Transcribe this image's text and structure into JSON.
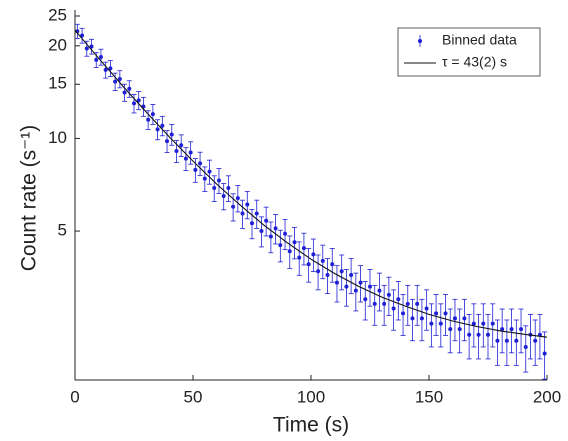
{
  "chart_data": {
    "type": "scatter",
    "x_label": "Time (s)",
    "y_label": "Count rate (s⁻¹)",
    "log_y": true,
    "legend_position": "upper right",
    "xlim": [
      0,
      200
    ],
    "xticks": [
      0,
      50,
      100,
      150,
      200
    ],
    "ylim": [
      1.64,
      25
    ],
    "yticks": [
      5,
      10,
      15,
      20,
      25
    ],
    "series": [
      {
        "name": "Binned data",
        "type": "errorbar",
        "color": "#1f1fd6",
        "x": [
          1,
          3,
          5,
          7,
          9,
          11,
          13,
          15,
          17,
          19,
          21,
          23,
          25,
          27,
          29,
          31,
          33,
          35,
          37,
          39,
          41,
          43,
          45,
          47,
          49,
          51,
          53,
          55,
          57,
          59,
          61,
          63,
          65,
          67,
          69,
          71,
          73,
          75,
          77,
          79,
          81,
          83,
          85,
          87,
          89,
          91,
          93,
          95,
          97,
          99,
          101,
          103,
          105,
          107,
          109,
          111,
          113,
          115,
          117,
          119,
          121,
          123,
          125,
          127,
          129,
          131,
          133,
          135,
          137,
          139,
          141,
          143,
          145,
          147,
          149,
          151,
          153,
          155,
          157,
          159,
          161,
          163,
          165,
          167,
          169,
          171,
          173,
          175,
          177,
          179,
          181,
          183,
          185,
          187,
          189,
          191,
          193,
          195,
          197,
          199
        ],
        "values": [
          22.3,
          21.6,
          19.6,
          19.9,
          18.0,
          18.4,
          16.7,
          16.9,
          15.3,
          15.6,
          14.1,
          14.5,
          13.0,
          13.3,
          12.7,
          11.5,
          12.0,
          10.7,
          11.0,
          9.8,
          10.3,
          9.1,
          9.5,
          8.6,
          9.0,
          7.9,
          8.3,
          7.4,
          7.8,
          6.9,
          7.3,
          6.5,
          6.9,
          6.0,
          6.4,
          5.7,
          6.1,
          5.3,
          5.7,
          5.0,
          5.4,
          4.8,
          5.1,
          4.5,
          4.9,
          4.3,
          4.6,
          4.1,
          4.4,
          3.9,
          4.2,
          3.7,
          4.0,
          3.6,
          3.9,
          3.4,
          3.7,
          3.3,
          3.6,
          3.2,
          3.4,
          3.0,
          3.3,
          2.9,
          3.2,
          2.9,
          3.1,
          2.8,
          3.0,
          2.7,
          2.9,
          2.6,
          2.9,
          2.6,
          2.8,
          2.5,
          2.7,
          2.5,
          2.7,
          2.4,
          2.6,
          2.4,
          2.6,
          2.3,
          2.5,
          2.3,
          2.5,
          2.3,
          2.5,
          2.2,
          2.4,
          2.2,
          2.4,
          2.2,
          2.4,
          2.1,
          2.3,
          2.2,
          2.3,
          2.0
        ],
        "errors": [
          1.2,
          1.2,
          1.1,
          1.1,
          1.0,
          1.1,
          1.0,
          1.0,
          1.0,
          1.0,
          0.9,
          0.9,
          0.9,
          0.9,
          0.9,
          0.8,
          0.9,
          0.8,
          0.8,
          0.8,
          0.8,
          0.75,
          0.77,
          0.73,
          0.75,
          0.7,
          0.72,
          0.68,
          0.7,
          0.66,
          0.68,
          0.64,
          0.66,
          0.61,
          0.63,
          0.6,
          0.62,
          0.58,
          0.6,
          0.56,
          0.58,
          0.55,
          0.56,
          0.53,
          0.55,
          0.52,
          0.54,
          0.51,
          0.52,
          0.49,
          0.51,
          0.48,
          0.5,
          0.47,
          0.49,
          0.46,
          0.48,
          0.45,
          0.47,
          0.45,
          0.46,
          0.43,
          0.45,
          0.43,
          0.45,
          0.43,
          0.44,
          0.42,
          0.43,
          0.41,
          0.43,
          0.4,
          0.43,
          0.4,
          0.42,
          0.4,
          0.41,
          0.4,
          0.41,
          0.39,
          0.4,
          0.39,
          0.4,
          0.38,
          0.4,
          0.38,
          0.4,
          0.38,
          0.4,
          0.37,
          0.39,
          0.37,
          0.39,
          0.37,
          0.39,
          0.36,
          0.38,
          0.37,
          0.38,
          0.35
        ]
      },
      {
        "name": "τ = 43(2) s",
        "type": "line",
        "color": "#111111",
        "x": [
          0,
          10,
          20,
          30,
          40,
          50,
          60,
          70,
          80,
          90,
          100,
          110,
          120,
          130,
          140,
          150,
          160,
          170,
          180,
          190,
          200
        ],
        "values": [
          22.46,
          18.23,
          14.87,
          12.22,
          10.11,
          8.44,
          7.11,
          6.07,
          5.23,
          4.58,
          4.05,
          3.64,
          3.31,
          3.05,
          2.85,
          2.68,
          2.55,
          2.45,
          2.37,
          2.31,
          2.26
        ]
      }
    ]
  }
}
